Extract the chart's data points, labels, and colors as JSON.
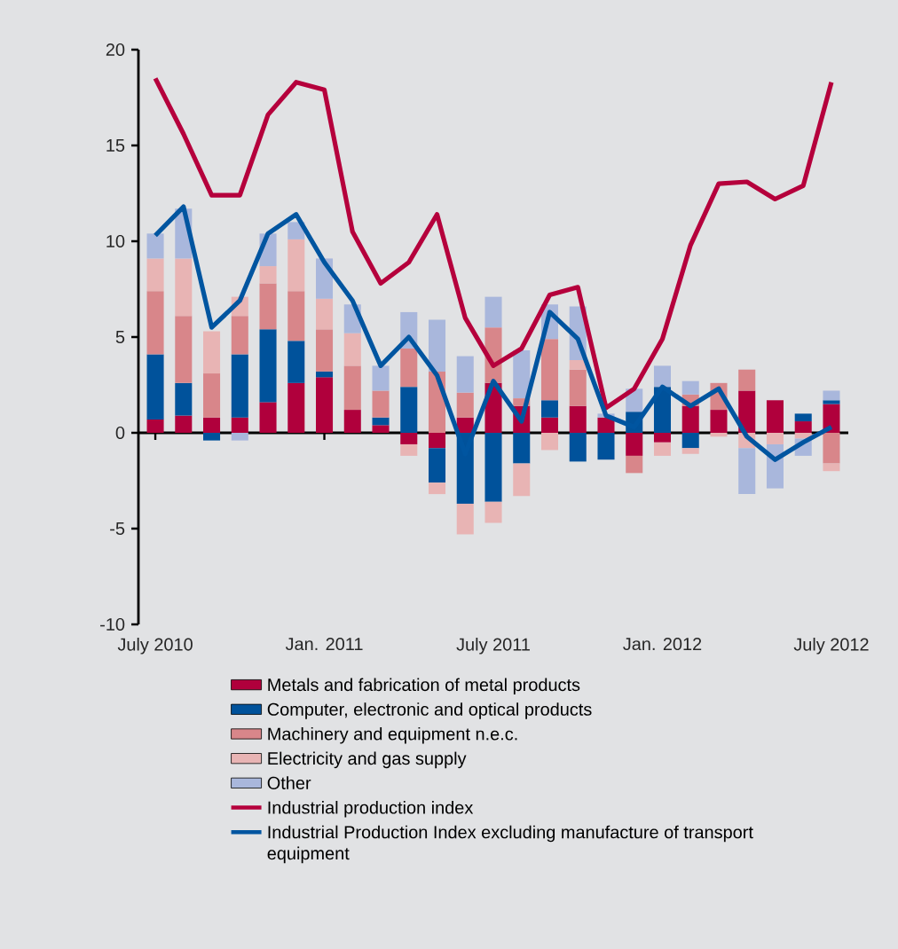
{
  "chart_data": {
    "type": "bar",
    "stacked": true,
    "legend": "bottom",
    "categories": [
      "July 2010",
      null,
      null,
      null,
      null,
      null,
      "Jan. 2011",
      null,
      null,
      null,
      null,
      null,
      "July 2011",
      null,
      null,
      null,
      null,
      null,
      "Jan. 2012",
      null,
      null,
      null,
      null,
      null,
      "July 2012"
    ],
    "ylim": [
      -10,
      20
    ],
    "yticks": [
      -10,
      -5,
      0,
      5,
      10,
      15,
      20
    ],
    "series": [
      {
        "name": "Metals and fabrication of metal products",
        "color": "#b0003c",
        "values": [
          0.7,
          0.9,
          0.8,
          0.8,
          1.6,
          2.6,
          2.9,
          1.2,
          0.4,
          -0.6,
          -0.8,
          0.8,
          2.6,
          1.4,
          0.8,
          1.4,
          0.8,
          -1.2,
          -0.5,
          1.4,
          1.2,
          2.2,
          1.7,
          0.6,
          1.5
        ]
      },
      {
        "name": "Computer, electronic and optical products",
        "color": "#00529b",
        "values": [
          3.4,
          1.7,
          -0.4,
          3.3,
          3.8,
          2.2,
          0.3,
          0,
          0.4,
          2.4,
          -1.8,
          -3.7,
          -3.6,
          -1.6,
          0.9,
          -1.5,
          -1.4,
          1.1,
          2.4,
          -0.8,
          0,
          0,
          0,
          0.4,
          0.2
        ]
      },
      {
        "name": "Machinery and equipment n.e.c.",
        "color": "#d8868a",
        "values": [
          3.3,
          3.5,
          2.3,
          2.0,
          2.4,
          2.6,
          2.2,
          2.3,
          1.4,
          2.0,
          3.2,
          1.3,
          2.9,
          0.4,
          3.2,
          1.9,
          null,
          -0.9,
          0,
          0.6,
          1.4,
          1.1,
          0,
          0,
          -1.6
        ]
      },
      {
        "name": "Electricity and gas supply",
        "color": "#e8b4b4",
        "values": [
          1.7,
          3.0,
          2.2,
          1.0,
          0.9,
          2.7,
          1.6,
          1.7,
          0,
          -0.6,
          -0.6,
          -1.6,
          -1.1,
          -1.7,
          -0.9,
          0.5,
          null,
          0,
          -0.7,
          -0.3,
          -0.2,
          -0.8,
          -0.6,
          -0.3,
          -0.4
        ]
      },
      {
        "name": "Other",
        "color": "#a9b7dc",
        "values": [
          1.3,
          2.6,
          0,
          -0.4,
          1.7,
          0.9,
          2.1,
          1.5,
          1.3,
          1.9,
          2.7,
          1.9,
          1.6,
          2.5,
          1.8,
          2.8,
          0.2,
          1.2,
          1.1,
          0.7,
          0,
          -2.4,
          -2.3,
          -0.9,
          0.5
        ]
      },
      {
        "name": "Industrial production index",
        "type": "line",
        "color": "#b5003c",
        "values": [
          18.5,
          15.6,
          12.4,
          12.4,
          16.6,
          18.3,
          17.9,
          10.5,
          7.8,
          8.9,
          11.4,
          6.0,
          3.5,
          4.4,
          7.2,
          7.6,
          1.3,
          2.3,
          4.9,
          9.8,
          13.0,
          13.1,
          12.2,
          12.9,
          18.3
        ]
      },
      {
        "name": "Industrial Production Index excluding manufacture of transport equipment",
        "type": "line",
        "color": "#0055a0",
        "values": [
          10.3,
          11.8,
          5.5,
          6.9,
          10.4,
          11.4,
          8.9,
          6.9,
          3.5,
          5.0,
          3.0,
          -1.1,
          2.7,
          0.6,
          6.3,
          4.9,
          0.9,
          0.3,
          2.4,
          1.4,
          2.3,
          -0.2,
          -1.4,
          -0.5,
          0.3
        ]
      }
    ]
  }
}
